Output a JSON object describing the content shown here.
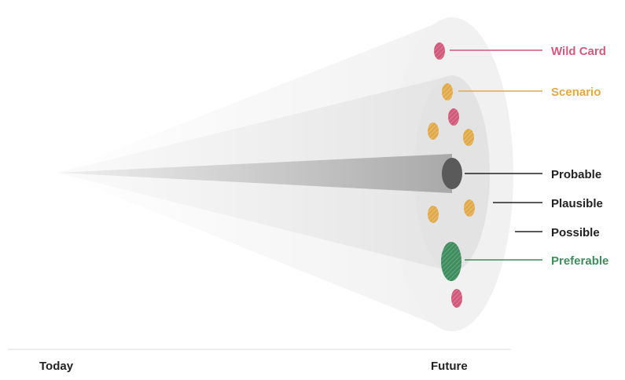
{
  "diagram": {
    "labels": {
      "wild_card": "Wild Card",
      "scenario": "Scenario",
      "probable": "Probable",
      "plausible": "Plausible",
      "possible": "Possible",
      "preferable": "Preferable"
    },
    "axis": {
      "start": "Today",
      "end": "Future"
    },
    "colors": {
      "wild_card": "#d05a7c",
      "scenario": "#e0a94a",
      "probable": "#555555",
      "preferable": "#3f8c5f",
      "label_dark": "#222222",
      "cone_outer": "#f4f4f4",
      "cone_middle": "#e8e8e8",
      "cone_inner": "#b8b8b8"
    }
  }
}
